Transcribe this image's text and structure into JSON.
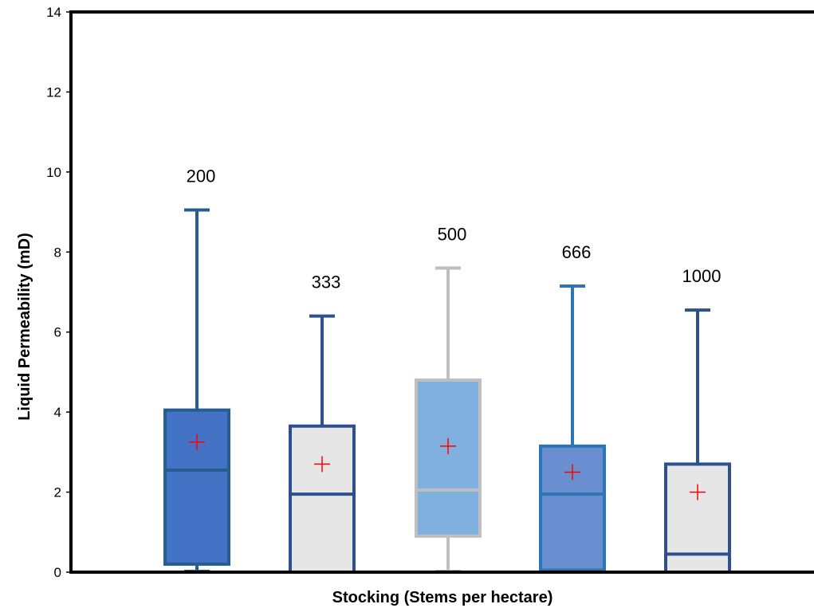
{
  "chart_data": {
    "type": "box",
    "title": "",
    "xlabel": "Stocking (Stems per hectare)",
    "ylabel": "Liquid Permeability (mD)",
    "ylim": [
      0,
      14
    ],
    "yticks": [
      0,
      2,
      4,
      6,
      8,
      10,
      12,
      14
    ],
    "grid": false,
    "legend": "none",
    "categories": [
      "200",
      "333",
      "500",
      "666",
      "1000"
    ],
    "series": [
      {
        "category": "200",
        "min": 0.0,
        "q1": 0.2,
        "median": 2.55,
        "q3": 4.05,
        "max": 9.05,
        "mean": 3.25,
        "fill": "#4472c4",
        "stroke": "#255e91"
      },
      {
        "category": "333",
        "min": 0.0,
        "q1": 0.0,
        "median": 1.95,
        "q3": 3.65,
        "max": 6.4,
        "mean": 2.7,
        "fill": "#e6e6e6",
        "stroke": "#2f4f8f"
      },
      {
        "category": "500",
        "min": 0.0,
        "q1": 0.9,
        "median": 2.05,
        "q3": 4.8,
        "max": 7.6,
        "mean": 3.15,
        "fill": "#7fb0e0",
        "stroke": "#bfbfbf"
      },
      {
        "category": "666",
        "min": 0.0,
        "q1": 0.05,
        "median": 1.95,
        "q3": 3.15,
        "max": 7.15,
        "mean": 2.5,
        "fill": "#6a8fd1",
        "stroke": "#2e75b6"
      },
      {
        "category": "1000",
        "min": 0.0,
        "q1": 0.0,
        "median": 0.45,
        "q3": 2.7,
        "max": 6.55,
        "mean": 2.0,
        "fill": "#e6e6e6",
        "stroke": "#2f4f8f"
      }
    ],
    "mean_marker_color": "#ff0000"
  }
}
